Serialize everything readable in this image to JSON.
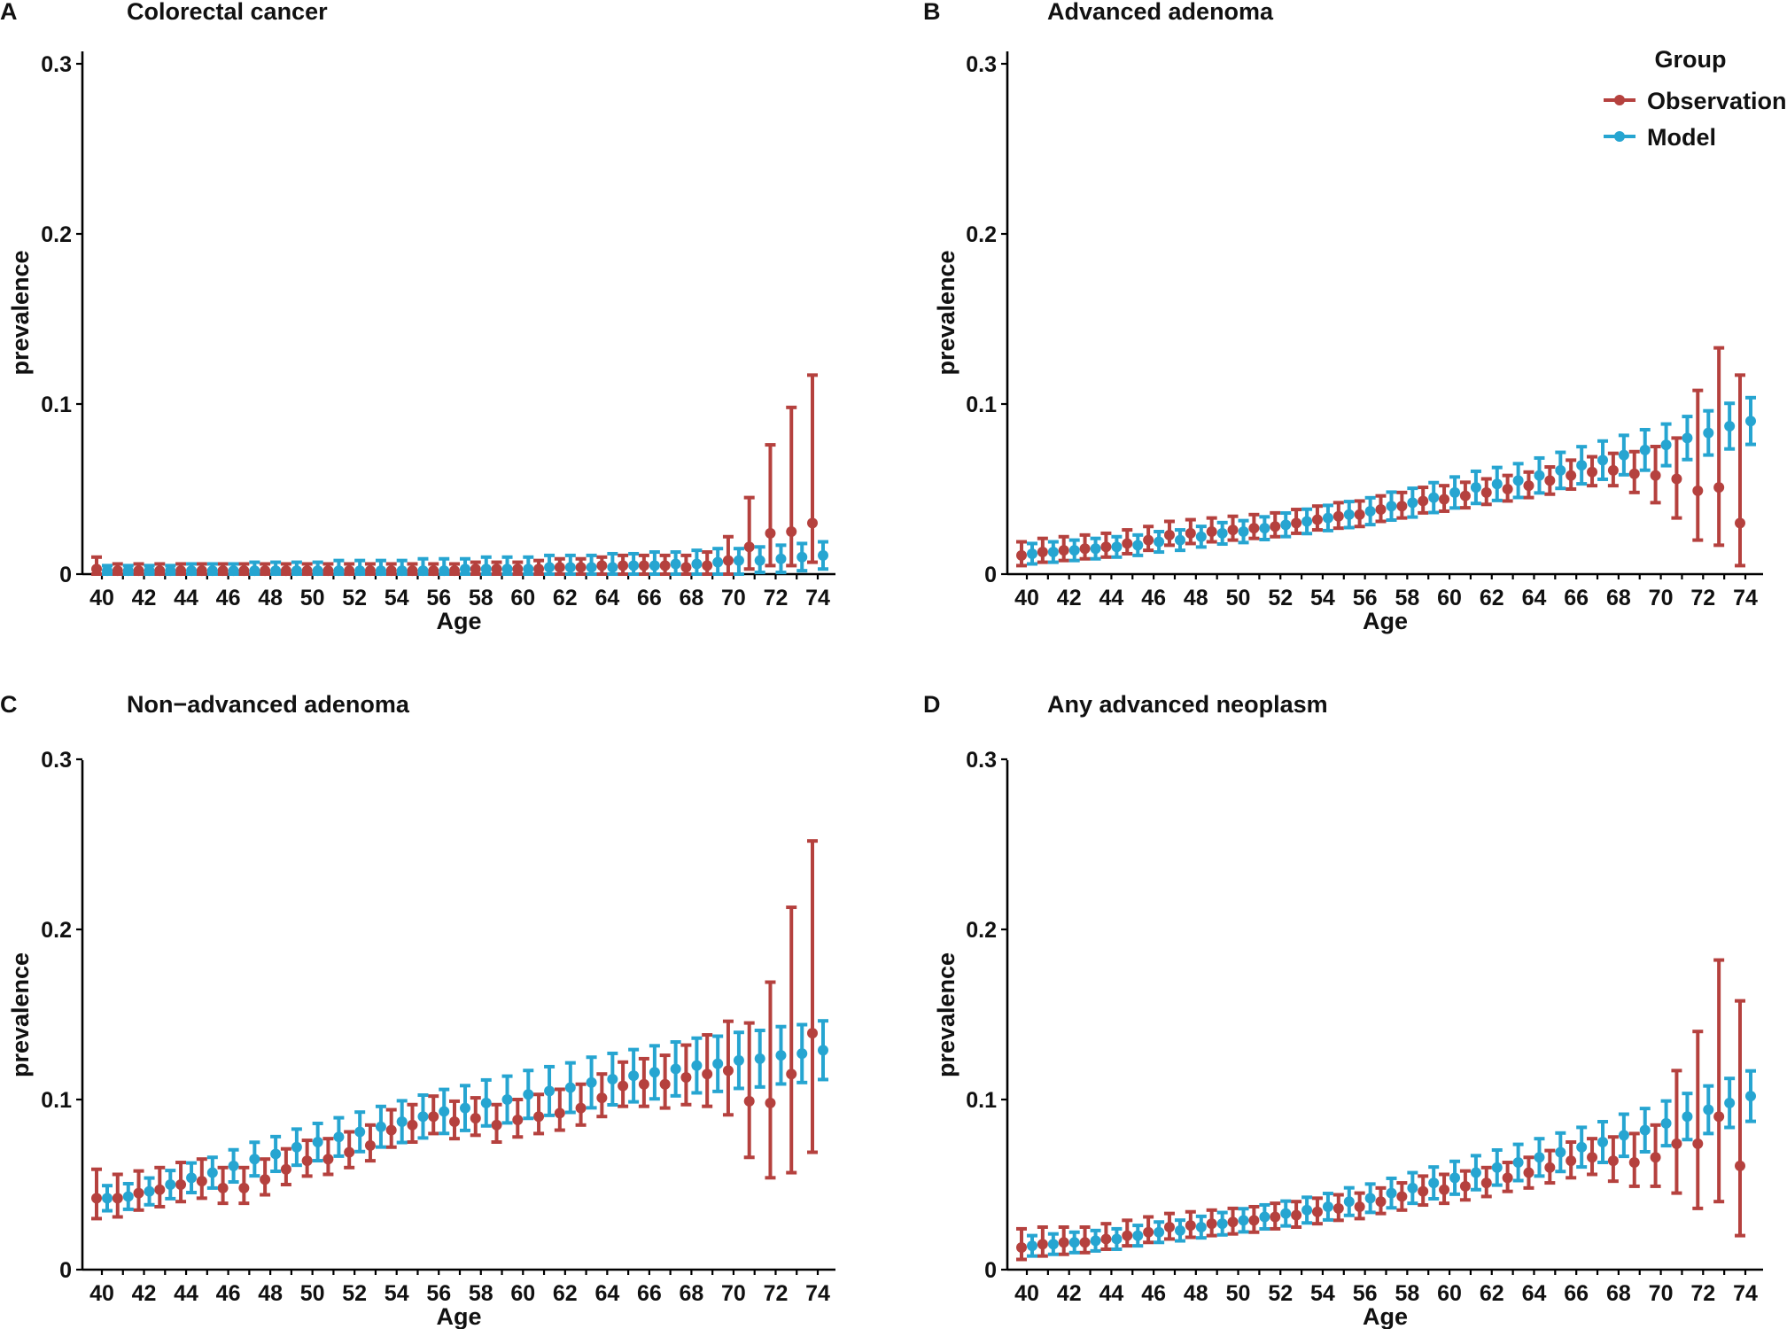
{
  "legend": {
    "title": "Group",
    "entries": [
      {
        "label": "Observation",
        "color": "#B5413E"
      },
      {
        "label": "Model",
        "color": "#26A5D1"
      }
    ],
    "placement": "top-right of panel B"
  },
  "chart_data": [
    {
      "type": "scatter",
      "letter": "A",
      "title": "Colorectal cancer",
      "xlabel": "Age",
      "ylabel": "prevalence",
      "ylim": [
        0,
        0.3
      ],
      "yticks": [
        0,
        0.1,
        0.2,
        0.3
      ],
      "ytick_labels": [
        "0",
        "0.1",
        "0.2",
        "0.3"
      ],
      "x": [
        40,
        41,
        42,
        43,
        44,
        45,
        46,
        47,
        48,
        49,
        50,
        51,
        52,
        53,
        54,
        55,
        56,
        57,
        58,
        59,
        60,
        61,
        62,
        63,
        64,
        65,
        66,
        67,
        68,
        69,
        70,
        71,
        72,
        73,
        74
      ],
      "xtick_labels": [
        "40",
        "42",
        "44",
        "46",
        "48",
        "50",
        "52",
        "54",
        "56",
        "58",
        "60",
        "62",
        "64",
        "66",
        "68",
        "70",
        "72",
        "74"
      ],
      "series": [
        {
          "name": "Observation",
          "mean": [
            0.003,
            0.002,
            0.002,
            0.002,
            0.002,
            0.002,
            0.002,
            0.002,
            0.002,
            0.002,
            0.002,
            0.002,
            0.002,
            0.002,
            0.002,
            0.002,
            0.002,
            0.002,
            0.003,
            0.003,
            0.003,
            0.003,
            0.004,
            0.004,
            0.005,
            0.005,
            0.005,
            0.005,
            0.004,
            0.005,
            0.008,
            0.016,
            0.024,
            0.025,
            0.03
          ],
          "lower": [
            0.0,
            0.0,
            0.0,
            0.0,
            0.0,
            0.0,
            0.0,
            0.0,
            0.0,
            0.0,
            0.0,
            0.0,
            0.0,
            0.0,
            0.0,
            0.0,
            0.0,
            0.0,
            0.0,
            0.0,
            0.0,
            0.0,
            0.0,
            0.0,
            0.0,
            0.0,
            0.0,
            0.0,
            0.0,
            0.0,
            0.0,
            0.003,
            0.005,
            0.005,
            0.007
          ],
          "upper": [
            0.01,
            0.006,
            0.006,
            0.006,
            0.006,
            0.006,
            0.006,
            0.006,
            0.006,
            0.006,
            0.006,
            0.006,
            0.006,
            0.006,
            0.006,
            0.006,
            0.006,
            0.006,
            0.007,
            0.007,
            0.007,
            0.008,
            0.009,
            0.009,
            0.01,
            0.011,
            0.011,
            0.011,
            0.011,
            0.013,
            0.022,
            0.045,
            0.076,
            0.098,
            0.117
          ]
        },
        {
          "name": "Model",
          "mean": [
            0.002,
            0.002,
            0.002,
            0.002,
            0.002,
            0.002,
            0.002,
            0.002,
            0.002,
            0.002,
            0.002,
            0.002,
            0.002,
            0.002,
            0.002,
            0.002,
            0.002,
            0.003,
            0.003,
            0.003,
            0.003,
            0.004,
            0.004,
            0.004,
            0.004,
            0.005,
            0.005,
            0.006,
            0.006,
            0.007,
            0.008,
            0.008,
            0.009,
            0.01,
            0.011
          ],
          "lower": [
            0.0,
            0.0,
            0.0,
            0.0,
            0.0,
            0.0,
            0.0,
            0.0,
            0.0,
            0.0,
            0.0,
            0.0,
            0.0,
            0.0,
            0.0,
            0.0,
            0.0,
            0.0,
            0.0,
            0.0,
            0.0,
            0.0,
            0.0,
            0.0,
            0.0,
            0.0,
            0.0,
            0.0,
            0.0,
            0.0,
            0.0,
            0.001,
            0.001,
            0.002,
            0.003
          ],
          "upper": [
            0.005,
            0.005,
            0.005,
            0.005,
            0.006,
            0.006,
            0.006,
            0.007,
            0.007,
            0.007,
            0.007,
            0.008,
            0.008,
            0.008,
            0.008,
            0.009,
            0.009,
            0.009,
            0.01,
            0.01,
            0.01,
            0.011,
            0.011,
            0.011,
            0.012,
            0.012,
            0.013,
            0.013,
            0.014,
            0.015,
            0.015,
            0.016,
            0.017,
            0.018,
            0.019
          ]
        }
      ]
    },
    {
      "type": "scatter",
      "letter": "B",
      "title": "Advanced adenoma",
      "xlabel": "Age",
      "ylabel": "prevalence",
      "ylim": [
        0,
        0.3
      ],
      "yticks": [
        0,
        0.1,
        0.2,
        0.3
      ],
      "ytick_labels": [
        "0",
        "0.1",
        "0.2",
        "0.3"
      ],
      "x": [
        40,
        41,
        42,
        43,
        44,
        45,
        46,
        47,
        48,
        49,
        50,
        51,
        52,
        53,
        54,
        55,
        56,
        57,
        58,
        59,
        60,
        61,
        62,
        63,
        64,
        65,
        66,
        67,
        68,
        69,
        70,
        71,
        72,
        73,
        74
      ],
      "xtick_labels": [
        "40",
        "42",
        "44",
        "46",
        "48",
        "50",
        "52",
        "54",
        "56",
        "58",
        "60",
        "62",
        "64",
        "66",
        "68",
        "70",
        "72",
        "74"
      ],
      "series": [
        {
          "name": "Observation",
          "mean": [
            0.011,
            0.013,
            0.014,
            0.015,
            0.016,
            0.018,
            0.02,
            0.023,
            0.024,
            0.025,
            0.026,
            0.027,
            0.028,
            0.03,
            0.032,
            0.034,
            0.035,
            0.038,
            0.04,
            0.043,
            0.044,
            0.046,
            0.048,
            0.05,
            0.052,
            0.055,
            0.058,
            0.06,
            0.061,
            0.059,
            0.058,
            0.056,
            0.049,
            0.051,
            0.03
          ],
          "lower": [
            0.005,
            0.007,
            0.008,
            0.009,
            0.01,
            0.012,
            0.014,
            0.017,
            0.018,
            0.019,
            0.02,
            0.021,
            0.022,
            0.024,
            0.026,
            0.027,
            0.028,
            0.031,
            0.033,
            0.036,
            0.037,
            0.039,
            0.041,
            0.043,
            0.045,
            0.047,
            0.05,
            0.052,
            0.052,
            0.048,
            0.042,
            0.033,
            0.02,
            0.017,
            0.005
          ],
          "upper": [
            0.019,
            0.021,
            0.022,
            0.023,
            0.024,
            0.026,
            0.028,
            0.031,
            0.032,
            0.033,
            0.034,
            0.035,
            0.036,
            0.038,
            0.04,
            0.042,
            0.043,
            0.046,
            0.048,
            0.051,
            0.052,
            0.054,
            0.056,
            0.058,
            0.06,
            0.063,
            0.067,
            0.069,
            0.071,
            0.072,
            0.075,
            0.08,
            0.108,
            0.133,
            0.117
          ]
        },
        {
          "name": "Model",
          "mean": [
            0.012,
            0.013,
            0.014,
            0.015,
            0.016,
            0.017,
            0.019,
            0.02,
            0.022,
            0.024,
            0.025,
            0.027,
            0.029,
            0.031,
            0.033,
            0.035,
            0.037,
            0.04,
            0.042,
            0.045,
            0.048,
            0.051,
            0.053,
            0.055,
            0.058,
            0.061,
            0.064,
            0.067,
            0.07,
            0.073,
            0.076,
            0.08,
            0.083,
            0.087,
            0.09
          ]
        }
      ]
    },
    {
      "type": "scatter",
      "letter": "C",
      "title": "Non−advanced adenoma",
      "xlabel": "Age",
      "ylabel": "prevalence",
      "ylim": [
        0,
        0.3
      ],
      "yticks": [
        0,
        0.1,
        0.2,
        0.3
      ],
      "ytick_labels": [
        "0",
        "0.1",
        "0.2",
        "0.3"
      ],
      "x": [
        40,
        41,
        42,
        43,
        44,
        45,
        46,
        47,
        48,
        49,
        50,
        51,
        52,
        53,
        54,
        55,
        56,
        57,
        58,
        59,
        60,
        61,
        62,
        63,
        64,
        65,
        66,
        67,
        68,
        69,
        70,
        71,
        72,
        73,
        74
      ],
      "xtick_labels": [
        "40",
        "42",
        "44",
        "46",
        "48",
        "50",
        "52",
        "54",
        "56",
        "58",
        "60",
        "62",
        "64",
        "66",
        "68",
        "70",
        "72",
        "74"
      ],
      "series": [
        {
          "name": "Observation",
          "mean": [
            0.042,
            0.042,
            0.045,
            0.047,
            0.05,
            0.052,
            0.048,
            0.048,
            0.053,
            0.059,
            0.064,
            0.065,
            0.069,
            0.073,
            0.082,
            0.085,
            0.09,
            0.087,
            0.089,
            0.085,
            0.088,
            0.09,
            0.092,
            0.095,
            0.101,
            0.108,
            0.109,
            0.109,
            0.113,
            0.115,
            0.117,
            0.099,
            0.098,
            0.115,
            0.139
          ],
          "lower": [
            0.03,
            0.031,
            0.035,
            0.037,
            0.04,
            0.042,
            0.039,
            0.039,
            0.044,
            0.05,
            0.055,
            0.056,
            0.06,
            0.064,
            0.072,
            0.075,
            0.08,
            0.077,
            0.079,
            0.075,
            0.078,
            0.08,
            0.082,
            0.085,
            0.09,
            0.096,
            0.096,
            0.095,
            0.097,
            0.096,
            0.091,
            0.066,
            0.054,
            0.057,
            0.069
          ],
          "upper": [
            0.059,
            0.056,
            0.058,
            0.06,
            0.063,
            0.065,
            0.06,
            0.06,
            0.065,
            0.071,
            0.076,
            0.077,
            0.081,
            0.085,
            0.094,
            0.097,
            0.102,
            0.099,
            0.101,
            0.097,
            0.1,
            0.103,
            0.106,
            0.109,
            0.115,
            0.122,
            0.124,
            0.126,
            0.132,
            0.138,
            0.146,
            0.145,
            0.169,
            0.213,
            0.252
          ]
        },
        {
          "name": "Model",
          "mean": [
            0.042,
            0.043,
            0.046,
            0.05,
            0.054,
            0.057,
            0.061,
            0.065,
            0.068,
            0.072,
            0.075,
            0.078,
            0.081,
            0.084,
            0.087,
            0.09,
            0.093,
            0.095,
            0.098,
            0.1,
            0.103,
            0.105,
            0.107,
            0.11,
            0.112,
            0.114,
            0.116,
            0.118,
            0.12,
            0.121,
            0.123,
            0.124,
            0.126,
            0.127,
            0.129
          ]
        }
      ]
    },
    {
      "type": "scatter",
      "letter": "D",
      "title": "Any advanced neoplasm",
      "xlabel": "Age",
      "ylabel": "prevalence",
      "ylim": [
        0,
        0.3
      ],
      "yticks": [
        0,
        0.1,
        0.2,
        0.3
      ],
      "ytick_labels": [
        "0",
        "0.1",
        "0.2",
        "0.3"
      ],
      "x": [
        40,
        41,
        42,
        43,
        44,
        45,
        46,
        47,
        48,
        49,
        50,
        51,
        52,
        53,
        54,
        55,
        56,
        57,
        58,
        59,
        60,
        61,
        62,
        63,
        64,
        65,
        66,
        67,
        68,
        69,
        70,
        71,
        72,
        73,
        74
      ],
      "xtick_labels": [
        "40",
        "42",
        "44",
        "46",
        "48",
        "50",
        "52",
        "54",
        "56",
        "58",
        "60",
        "62",
        "64",
        "66",
        "68",
        "70",
        "72",
        "74"
      ],
      "series": [
        {
          "name": "Observation",
          "mean": [
            0.013,
            0.015,
            0.016,
            0.016,
            0.018,
            0.02,
            0.022,
            0.025,
            0.026,
            0.027,
            0.028,
            0.029,
            0.031,
            0.032,
            0.034,
            0.036,
            0.037,
            0.04,
            0.043,
            0.046,
            0.047,
            0.049,
            0.051,
            0.054,
            0.057,
            0.06,
            0.064,
            0.066,
            0.064,
            0.063,
            0.066,
            0.074,
            0.074,
            0.09,
            0.061
          ],
          "lower": [
            0.006,
            0.008,
            0.009,
            0.01,
            0.012,
            0.014,
            0.016,
            0.018,
            0.019,
            0.02,
            0.021,
            0.022,
            0.024,
            0.025,
            0.027,
            0.029,
            0.03,
            0.033,
            0.035,
            0.038,
            0.039,
            0.041,
            0.043,
            0.046,
            0.048,
            0.051,
            0.054,
            0.056,
            0.052,
            0.049,
            0.049,
            0.045,
            0.036,
            0.04,
            0.02
          ],
          "upper": [
            0.024,
            0.025,
            0.025,
            0.025,
            0.027,
            0.029,
            0.031,
            0.033,
            0.034,
            0.035,
            0.036,
            0.037,
            0.039,
            0.04,
            0.042,
            0.044,
            0.045,
            0.048,
            0.051,
            0.055,
            0.056,
            0.058,
            0.06,
            0.063,
            0.066,
            0.07,
            0.075,
            0.077,
            0.078,
            0.08,
            0.085,
            0.117,
            0.14,
            0.182,
            0.158
          ]
        },
        {
          "name": "Model",
          "mean": [
            0.014,
            0.015,
            0.016,
            0.017,
            0.018,
            0.02,
            0.022,
            0.023,
            0.025,
            0.027,
            0.029,
            0.031,
            0.033,
            0.035,
            0.037,
            0.04,
            0.042,
            0.045,
            0.048,
            0.051,
            0.054,
            0.057,
            0.06,
            0.063,
            0.066,
            0.069,
            0.072,
            0.075,
            0.079,
            0.082,
            0.086,
            0.09,
            0.094,
            0.098,
            0.102
          ]
        }
      ]
    }
  ]
}
